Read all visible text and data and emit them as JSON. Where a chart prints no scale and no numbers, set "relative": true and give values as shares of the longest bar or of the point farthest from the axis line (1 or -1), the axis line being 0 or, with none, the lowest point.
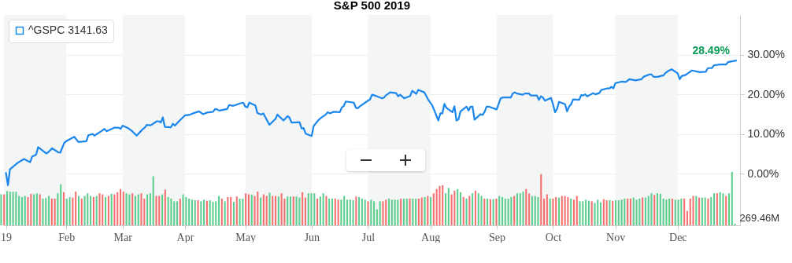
{
  "chart_data": [
    {
      "type": "line",
      "title": "S&P 500 2019",
      "grid": "y",
      "legend": "top left",
      "xlim": [
        "2019-01-01",
        "2020-01-02"
      ],
      "xticks": [
        {
          "value": "2019-01-02",
          "label": "19"
        },
        {
          "value": "2019-02-01",
          "label": "Feb"
        },
        {
          "value": "2019-03-01",
          "label": "Mar"
        },
        {
          "value": "2019-04-01",
          "label": "Apr"
        },
        {
          "value": "2019-05-01",
          "label": "May"
        },
        {
          "value": "2019-06-03",
          "label": "Jun"
        },
        {
          "value": "2019-07-01",
          "label": "Jul"
        },
        {
          "value": "2019-08-01",
          "label": "Aug"
        },
        {
          "value": "2019-09-03",
          "label": "Sep"
        },
        {
          "value": "2019-10-01",
          "label": "Oct"
        },
        {
          "value": "2019-11-01",
          "label": "Nov"
        },
        {
          "value": "2019-12-02",
          "label": "Dec"
        }
      ],
      "ylim": [
        -13,
        40
      ],
      "yticks": [
        {
          "value": 0,
          "label": "0.00%"
        },
        {
          "value": 10,
          "label": "10.00%"
        },
        {
          "value": 20,
          "label": "20.00%"
        },
        {
          "value": 30,
          "label": "30.00%"
        }
      ],
      "bands": [
        {
          "axis": "x",
          "from": "2019-01-01",
          "to": "2019-02-01",
          "color": "#f4f5f5"
        },
        {
          "axis": "x",
          "from": "2019-03-01",
          "to": "2019-04-01",
          "color": "#f4f5f5"
        },
        {
          "axis": "x",
          "from": "2019-05-01",
          "to": "2019-06-03",
          "color": "#f4f5f5"
        },
        {
          "axis": "x",
          "from": "2019-07-01",
          "to": "2019-08-01",
          "color": "#f4f5f5"
        },
        {
          "axis": "x",
          "from": "2019-09-03",
          "to": "2019-10-01",
          "color": "#f4f5f5"
        },
        {
          "axis": "x",
          "from": "2019-11-01",
          "to": "2019-12-02",
          "color": "#f4f5f5"
        }
      ],
      "annotations": [
        {
          "text": "28.49%",
          "x": "2019-12-31",
          "y": 28.49
        }
      ],
      "x": [
        "2019-01-02",
        "2019-01-03",
        "2019-01-04",
        "2019-01-08",
        "2019-01-11",
        "2019-01-14",
        "2019-01-15",
        "2019-01-17",
        "2019-01-18",
        "2019-01-22",
        "2019-01-23",
        "2019-01-25",
        "2019-01-28",
        "2019-01-29",
        "2019-01-31",
        "2019-02-01",
        "2019-02-05",
        "2019-02-07",
        "2019-02-11",
        "2019-02-12",
        "2019-02-14",
        "2019-02-15",
        "2019-02-19",
        "2019-02-20",
        "2019-02-21",
        "2019-02-25",
        "2019-02-27",
        "2019-02-28",
        "2019-03-01",
        "2019-03-04",
        "2019-03-06",
        "2019-03-08",
        "2019-03-11",
        "2019-03-12",
        "2019-03-13",
        "2019-03-15",
        "2019-03-18",
        "2019-03-19",
        "2019-03-20",
        "2019-03-21",
        "2019-03-22",
        "2019-03-25",
        "2019-03-26",
        "2019-03-27",
        "2019-03-29",
        "2019-04-01",
        "2019-04-03",
        "2019-04-05",
        "2019-04-08",
        "2019-04-10",
        "2019-04-12",
        "2019-04-15",
        "2019-04-16",
        "2019-04-17",
        "2019-04-18",
        "2019-04-22",
        "2019-04-23",
        "2019-04-25",
        "2019-04-29",
        "2019-04-30",
        "2019-05-01",
        "2019-05-02",
        "2019-05-03",
        "2019-05-06",
        "2019-05-07",
        "2019-05-09",
        "2019-05-10",
        "2019-05-13",
        "2019-05-15",
        "2019-05-16",
        "2019-05-17",
        "2019-05-20",
        "2019-05-22",
        "2019-05-23",
        "2019-05-24",
        "2019-05-28",
        "2019-05-29",
        "2019-05-30",
        "2019-05-31",
        "2019-06-03",
        "2019-06-04",
        "2019-06-06",
        "2019-06-07",
        "2019-06-10",
        "2019-06-11",
        "2019-06-12",
        "2019-06-14",
        "2019-06-17",
        "2019-06-18",
        "2019-06-19",
        "2019-06-20",
        "2019-06-24",
        "2019-06-25",
        "2019-06-26",
        "2019-06-27",
        "2019-07-01",
        "2019-07-02",
        "2019-07-03",
        "2019-07-05",
        "2019-07-08",
        "2019-07-09",
        "2019-07-10",
        "2019-07-11",
        "2019-07-12",
        "2019-07-15",
        "2019-07-16",
        "2019-07-17",
        "2019-07-19",
        "2019-07-22",
        "2019-07-23",
        "2019-07-25",
        "2019-07-26",
        "2019-07-29",
        "2019-07-31",
        "2019-08-02",
        "2019-08-05",
        "2019-08-06",
        "2019-08-07",
        "2019-08-08",
        "2019-08-09",
        "2019-08-12",
        "2019-08-13",
        "2019-08-14",
        "2019-08-15",
        "2019-08-16",
        "2019-08-19",
        "2019-08-20",
        "2019-08-21",
        "2019-08-22",
        "2019-08-23",
        "2019-08-26",
        "2019-08-27",
        "2019-08-28",
        "2019-08-29",
        "2019-08-30",
        "2019-09-03",
        "2019-09-05",
        "2019-09-06",
        "2019-09-10",
        "2019-09-11",
        "2019-09-12",
        "2019-09-13",
        "2019-09-16",
        "2019-09-17",
        "2019-09-19",
        "2019-09-20",
        "2019-09-23",
        "2019-09-24",
        "2019-09-25",
        "2019-09-26",
        "2019-09-27",
        "2019-09-30",
        "2019-10-01",
        "2019-10-02",
        "2019-10-03",
        "2019-10-04",
        "2019-10-07",
        "2019-10-08",
        "2019-10-09",
        "2019-10-10",
        "2019-10-11",
        "2019-10-14",
        "2019-10-15",
        "2019-10-16",
        "2019-10-17",
        "2019-10-18",
        "2019-10-21",
        "2019-10-22",
        "2019-10-24",
        "2019-10-25",
        "2019-10-28",
        "2019-10-29",
        "2019-10-30",
        "2019-10-31",
        "2019-11-01",
        "2019-11-04",
        "2019-11-06",
        "2019-11-07",
        "2019-11-08",
        "2019-11-11",
        "2019-11-14",
        "2019-11-15",
        "2019-11-18",
        "2019-11-19",
        "2019-11-20",
        "2019-11-22",
        "2019-11-25",
        "2019-11-26",
        "2019-11-27",
        "2019-11-29",
        "2019-12-02",
        "2019-12-03",
        "2019-12-04",
        "2019-12-06",
        "2019-12-09",
        "2019-12-13",
        "2019-12-16",
        "2019-12-17",
        "2019-12-19",
        "2019-12-20",
        "2019-12-23",
        "2019-12-26",
        "2019-12-27",
        "2019-12-31"
      ],
      "series": [
        {
          "name": "^GSPC 3141.63",
          "color": "#1b87ec",
          "values": [
            0.2,
            -2.9,
            1.1,
            2.8,
            3.7,
            2.9,
            4.3,
            4.8,
            6.7,
            5.1,
            5.4,
            6.4,
            5.4,
            5.3,
            7.8,
            8.2,
            9.3,
            8.0,
            8.2,
            9.7,
            10.0,
            9.6,
            10.9,
            11.3,
            10.7,
            11.6,
            11.6,
            11.3,
            12.1,
            11.4,
            10.6,
            9.6,
            11.2,
            11.6,
            12.3,
            12.2,
            13.2,
            13.2,
            12.9,
            14.2,
            11.8,
            11.7,
            12.6,
            12.1,
            13.2,
            14.7,
            14.8,
            15.2,
            15.7,
            15.0,
            15.4,
            15.6,
            16.3,
            16.2,
            15.9,
            16.3,
            17.3,
            17.1,
            17.8,
            17.9,
            16.9,
            16.7,
            17.9,
            17.2,
            15.3,
            14.9,
            15.2,
            12.3,
            13.3,
            13.8,
            14.9,
            13.4,
            14.5,
            14.1,
            12.9,
            13.0,
            11.4,
            11.5,
            10.1,
            9.5,
            12.0,
            13.3,
            13.8,
            14.9,
            15.5,
            15.2,
            15.6,
            15.5,
            16.7,
            17.1,
            18.2,
            17.9,
            16.6,
            16.5,
            17.0,
            18.4,
            18.7,
            19.9,
            19.6,
            19.0,
            19.2,
            19.8,
            20.1,
            20.5,
            20.3,
            19.5,
            19.9,
            19.0,
            19.6,
            20.9,
            20.1,
            21.1,
            20.5,
            18.6,
            17.2,
            13.4,
            15.2,
            15.2,
            17.6,
            16.6,
            15.5,
            17.0,
            13.4,
            13.7,
            15.7,
            16.9,
            15.9,
            16.9,
            16.9,
            13.6,
            15.0,
            14.8,
            15.6,
            16.9,
            16.9,
            16.2,
            19.0,
            19.2,
            19.2,
            20.2,
            20.5,
            20.2,
            19.9,
            20.2,
            20.2,
            19.7,
            19.7,
            18.6,
            19.5,
            19.2,
            18.4,
            19.1,
            17.5,
            15.5,
            16.3,
            18.1,
            17.5,
            15.7,
            16.9,
            17.5,
            18.7,
            18.6,
            19.8,
            19.7,
            20.0,
            19.5,
            20.3,
            20.0,
            20.3,
            21.1,
            21.5,
            21.5,
            21.9,
            21.5,
            22.8,
            23.2,
            23.1,
            23.4,
            23.8,
            23.5,
            23.8,
            24.4,
            25.0,
            25.0,
            24.4,
            24.4,
            24.8,
            25.4,
            25.8,
            26.3,
            25.3,
            23.8,
            24.6,
            24.9,
            26.0,
            25.6,
            25.7,
            26.6,
            26.6,
            27.3,
            27.5,
            27.5,
            28.1,
            28.49
          ]
        }
      ]
    },
    {
      "type": "bar",
      "relative": true,
      "annotations": [
        "269.46M"
      ],
      "categories": [
        null,
        null,
        null,
        null,
        null,
        null,
        null,
        null,
        null,
        null,
        null,
        null,
        null,
        null,
        null,
        null,
        null,
        null,
        null,
        null,
        null,
        null,
        null,
        null,
        null,
        null,
        null,
        null,
        null,
        null,
        null,
        null,
        null,
        null,
        null,
        null,
        null,
        null,
        null,
        null,
        null,
        null,
        null,
        null,
        null,
        null,
        null,
        null,
        null,
        null,
        null,
        null,
        null,
        null,
        null,
        null,
        null,
        null,
        null,
        null,
        null,
        null,
        null,
        null,
        null,
        null,
        null,
        null,
        null,
        null,
        null,
        null,
        null,
        null,
        null,
        null,
        null,
        null,
        null,
        null,
        null,
        null,
        null,
        null,
        null,
        null,
        null,
        null,
        null,
        null,
        null,
        null,
        null,
        null,
        null,
        null,
        null,
        null,
        null,
        null,
        null,
        null,
        null,
        null,
        null,
        null,
        null,
        null,
        null,
        null,
        null,
        null,
        null,
        null,
        null,
        null,
        null,
        null,
        null,
        null,
        null,
        null,
        null,
        null,
        null,
        null,
        null,
        null,
        null,
        null,
        null,
        null,
        null,
        null,
        null,
        null,
        null,
        null,
        null,
        null,
        null,
        null,
        null,
        null,
        null,
        null,
        null,
        null,
        null,
        null,
        null,
        null,
        null,
        null,
        null,
        null,
        null,
        null,
        null,
        null,
        null,
        null,
        null,
        null,
        null,
        null,
        null,
        null,
        null,
        null,
        null,
        null,
        null,
        null,
        null,
        null,
        null,
        null,
        null,
        null,
        null,
        null,
        null,
        null,
        null,
        null,
        null,
        null,
        null,
        null,
        null,
        null,
        null,
        null,
        null,
        null,
        null,
        null,
        null,
        null,
        null,
        null,
        null,
        null,
        null,
        null,
        null,
        null,
        null,
        null,
        null,
        null,
        null,
        null,
        null,
        null,
        null,
        null,
        null,
        null,
        null,
        null,
        null,
        null,
        null,
        null,
        null,
        null,
        null,
        null,
        null,
        null,
        null,
        null,
        null,
        null,
        null,
        null,
        null,
        null,
        null,
        null,
        null,
        null,
        null,
        null,
        null
      ],
      "values": [
        0.58,
        0.58,
        0.64,
        0.63,
        0.63,
        0.63,
        0.55,
        0.53,
        0.55,
        0.53,
        0.59,
        0.58,
        0.6,
        0.58,
        0.5,
        0.51,
        0.55,
        0.5,
        0.5,
        0.6,
        0.77,
        0.62,
        0.5,
        0.53,
        0.52,
        0.63,
        0.55,
        0.5,
        0.55,
        0.6,
        0.55,
        0.53,
        0.55,
        0.6,
        0.58,
        0.53,
        0.55,
        0.59,
        0.58,
        0.62,
        0.68,
        0.63,
        0.6,
        0.58,
        0.6,
        0.55,
        0.58,
        0.6,
        0.5,
        0.58,
        0.6,
        0.92,
        0.55,
        0.55,
        0.58,
        0.67,
        0.53,
        0.5,
        0.45,
        0.45,
        0.5,
        0.58,
        0.53,
        0.5,
        0.48,
        0.47,
        0.47,
        0.45,
        0.48,
        0.46,
        0.47,
        0.44,
        0.45,
        0.55,
        0.5,
        0.45,
        0.53,
        0.53,
        0.44,
        0.54,
        0.5,
        0.5,
        0.6,
        0.58,
        0.57,
        0.55,
        0.63,
        0.52,
        0.58,
        0.55,
        0.61,
        0.55,
        0.55,
        0.54,
        0.6,
        0.5,
        0.54,
        0.54,
        0.54,
        0.54,
        0.52,
        0.62,
        0.52,
        0.6,
        0.6,
        0.6,
        0.5,
        0.54,
        0.6,
        0.55,
        0.5,
        0.5,
        0.5,
        0.48,
        0.48,
        0.55,
        0.48,
        0.48,
        0.47,
        0.54,
        0.53,
        0.5,
        0.48,
        0.45,
        0.48,
        0.45,
        0.3,
        0.45,
        0.45,
        0.48,
        0.5,
        0.48,
        0.48,
        0.48,
        0.5,
        0.5,
        0.5,
        0.5,
        0.5,
        0.5,
        0.5,
        0.52,
        0.53,
        0.55,
        0.53,
        0.6,
        0.68,
        0.74,
        0.75,
        0.6,
        0.7,
        0.58,
        0.65,
        0.68,
        0.62,
        0.53,
        0.5,
        0.55,
        0.6,
        0.65,
        0.6,
        0.55,
        0.5,
        0.5,
        0.49,
        0.49,
        0.5,
        0.55,
        0.53,
        0.5,
        0.5,
        0.53,
        0.55,
        0.6,
        0.6,
        0.63,
        0.68,
        0.6,
        0.55,
        0.55,
        0.53,
        0.96,
        0.5,
        0.58,
        0.5,
        0.5,
        0.53,
        0.52,
        0.55,
        0.55,
        0.53,
        0.5,
        0.48,
        0.55,
        0.45,
        0.45,
        0.48,
        0.46,
        0.45,
        0.42,
        0.48,
        0.43,
        0.49,
        0.47,
        0.47,
        0.46,
        0.47,
        0.47,
        0.48,
        0.5,
        0.5,
        0.5,
        0.52,
        0.48,
        0.5,
        0.52,
        0.52,
        0.55,
        0.6,
        0.57,
        0.6,
        0.59,
        0.5,
        0.48,
        0.5,
        0.5,
        0.48,
        0.48,
        0.5,
        0.5,
        0.27,
        0.5,
        0.55,
        0.55,
        0.52,
        0.52,
        0.52,
        0.5,
        0.53,
        0.6,
        0.6,
        0.62,
        0.6,
        0.55,
        0.6,
        1.0,
        0.03
      ],
      "colors": [
        "#5ccf8f",
        "#f5706f",
        "#5ccf8f",
        "#5ccf8f",
        "#5ccf8f",
        "#5ccf8f",
        "#5ccf8f",
        "#5ccf8f",
        "#5ccf8f",
        "#f5706f",
        "#f5706f",
        "#5ccf8f",
        "#5ccf8f",
        "#f5706f",
        "#5ccf8f",
        "#5ccf8f",
        "#5ccf8f",
        "#f5706f",
        "#f5706f",
        "#5ccf8f",
        "#5ccf8f",
        "#f5706f",
        "#5ccf8f",
        "#5ccf8f",
        "#f5706f",
        "#f5706f",
        "#5ccf8f",
        "#f5706f",
        "#5ccf8f",
        "#5ccf8f",
        "#5ccf8f",
        "#f5706f",
        "#5ccf8f",
        "#f5706f",
        "#f5706f",
        "#5ccf8f",
        "#f5706f",
        "#5ccf8f",
        "#f5706f",
        "#f5706f",
        "#f5706f",
        "#f5706f",
        "#5ccf8f",
        "#5ccf8f",
        "#f5706f",
        "#5ccf8f",
        "#5ccf8f",
        "#f5706f",
        "#f5706f",
        "#5ccf8f",
        "#5ccf8f",
        "#5ccf8f",
        "#f5706f",
        "#f5706f",
        "#5ccf8f",
        "#f5706f",
        "#5ccf8f",
        "#5ccf8f",
        "#5ccf8f",
        "#5ccf8f",
        "#f5706f",
        "#5ccf8f",
        "#5ccf8f",
        "#5ccf8f",
        "#5ccf8f",
        "#5ccf8f",
        "#f5706f",
        "#5ccf8f",
        "#5ccf8f",
        "#f5706f",
        "#5ccf8f",
        "#5ccf8f",
        "#5ccf8f",
        "#5ccf8f",
        "#f5706f",
        "#5ccf8f",
        "#f5706f",
        "#f5706f",
        "#5ccf8f",
        "#f5706f",
        "#5ccf8f",
        "#5ccf8f",
        "#f5706f",
        "#f5706f",
        "#5ccf8f",
        "#f5706f",
        "#f5706f",
        "#5ccf8f",
        "#f5706f",
        "#f5706f",
        "#5ccf8f",
        "#f5706f",
        "#f5706f",
        "#5ccf8f",
        "#f5706f",
        "#f5706f",
        "#5ccf8f",
        "#5ccf8f",
        "#f5706f",
        "#5ccf8f",
        "#5ccf8f",
        "#f5706f",
        "#f5706f",
        "#5ccf8f",
        "#5ccf8f",
        "#5ccf8f",
        "#f5706f",
        "#5ccf8f",
        "#5ccf8f",
        "#f5706f",
        "#5ccf8f",
        "#5ccf8f",
        "#f5706f",
        "#f5706f",
        "#5ccf8f",
        "#5ccf8f",
        "#5ccf8f",
        "#5ccf8f",
        "#5ccf8f",
        "#f5706f",
        "#5ccf8f",
        "#5ccf8f",
        "#5ccf8f",
        "#f5706f",
        "#5ccf8f",
        "#5ccf8f",
        "#5ccf8f",
        "#5ccf8f",
        "#f5706f",
        "#f5706f",
        "#5ccf8f",
        "#5ccf8f",
        "#5ccf8f",
        "#5ccf8f",
        "#f5706f",
        "#5ccf8f",
        "#5ccf8f",
        "#f5706f",
        "#5ccf8f",
        "#5ccf8f",
        "#f5706f",
        "#f5706f",
        "#5ccf8f",
        "#f5706f",
        "#5ccf8f",
        "#f5706f",
        "#f5706f",
        "#f5706f",
        "#f5706f",
        "#5ccf8f",
        "#5ccf8f",
        "#f5706f",
        "#f5706f",
        "#5ccf8f",
        "#5ccf8f",
        "#f5706f",
        "#5ccf8f",
        "#f5706f",
        "#5ccf8f",
        "#f5706f",
        "#5ccf8f",
        "#5ccf8f",
        "#f5706f",
        "#5ccf8f",
        "#f5706f",
        "#5ccf8f",
        "#f5706f",
        "#5ccf8f",
        "#5ccf8f",
        "#5ccf8f",
        "#5ccf8f",
        "#5ccf8f",
        "#f5706f",
        "#5ccf8f",
        "#5ccf8f",
        "#5ccf8f",
        "#f5706f",
        "#f5706f",
        "#5ccf8f",
        "#5ccf8f",
        "#5ccf8f",
        "#f5706f",
        "#f5706f",
        "#f5706f",
        "#5ccf8f",
        "#f5706f",
        "#f5706f",
        "#5ccf8f",
        "#f5706f",
        "#f5706f",
        "#f5706f",
        "#5ccf8f",
        "#f5706f",
        "#f5706f",
        "#5ccf8f",
        "#5ccf8f",
        "#5ccf8f",
        "#5ccf8f",
        "#f5706f",
        "#5ccf8f",
        "#5ccf8f",
        "#5ccf8f",
        "#f5706f",
        "#f5706f",
        "#5ccf8f",
        "#f5706f",
        "#5ccf8f",
        "#5ccf8f",
        "#5ccf8f",
        "#5ccf8f",
        "#f5706f",
        "#f5706f",
        "#5ccf8f",
        "#5ccf8f",
        "#5ccf8f",
        "#f5706f",
        "#5ccf8f",
        "#5ccf8f",
        "#5ccf8f",
        "#f5706f",
        "#5ccf8f",
        "#5ccf8f",
        "#5ccf8f",
        "#5ccf8f",
        "#5ccf8f",
        "#f5706f",
        "#5ccf8f",
        "#5ccf8f",
        "#5ccf8f",
        "#f5706f",
        "#f5706f",
        "#f5706f",
        "#f5706f",
        "#5ccf8f",
        "#f5706f",
        "#5ccf8f",
        "#5ccf8f",
        "#f5706f",
        "#5ccf8f",
        "#5ccf8f",
        "#f5706f",
        "#5ccf8f",
        "#5ccf8f",
        "#f5706f",
        "#5ccf8f",
        "#5ccf8f",
        "#5ccf8f"
      ]
    }
  ]
}
